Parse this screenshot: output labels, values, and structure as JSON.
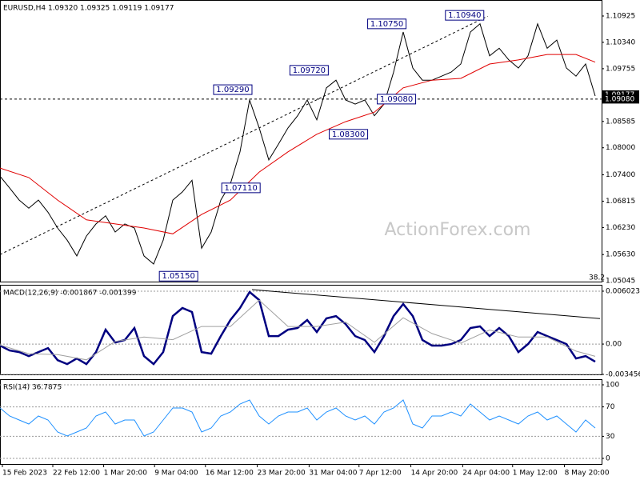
{
  "chart_data": [
    {
      "type": "line",
      "title": "EURUSD,H4  1.09320 1.09325 1.09119 1.09177",
      "watermark": "ActionForex.com",
      "note": "38.2",
      "xlim": [
        0,
        62.67
      ],
      "ylim": [
        1.0503,
        1.1128
      ],
      "grid": false,
      "yticks": [
        1.10925,
        {
          "value": 1.1034,
          "label": "1.10340"
        },
        1.09755,
        1.08585,
        {
          "value": 1.08,
          "label": "1.08000"
        },
        {
          "value": 1.074,
          "label": "1.07400"
        },
        1.06815,
        {
          "value": 1.0623,
          "label": "1.06230"
        },
        {
          "value": 1.0563,
          "label": "1.05630"
        },
        1.05045
      ],
      "series": [
        {
          "color": "#000000",
          "width": 1,
          "values": [
            1.0737,
            1.0711,
            1.0684,
            1.0666,
            1.0684,
            1.0657,
            1.0622,
            1.0595,
            1.056,
            1.0604,
            1.0631,
            1.0649,
            1.0613,
            1.0631,
            1.0622,
            1.056,
            1.0542,
            1.0595,
            1.0684,
            1.0702,
            1.0728,
            1.0577,
            1.0613,
            1.0684,
            1.072,
            1.0791,
            1.0906,
            1.0844,
            1.0773,
            1.0808,
            1.0844,
            1.0871,
            1.0906,
            1.0862,
            1.0933,
            1.095,
            1.0906,
            1.0897,
            1.0906,
            1.0871,
            1.0897,
            1.0968,
            1.1057,
            1.0977,
            1.095,
            1.095,
            1.0959,
            1.0968,
            1.0986,
            1.1057,
            1.1075,
            1.1004,
            1.1021,
            1.0995,
            1.0977,
            1.1004,
            1.1075,
            1.1021,
            1.1039,
            1.0977,
            1.0959,
            1.0986,
            1.0915
          ]
        },
        {
          "color": "#e00000",
          "width": 1,
          "x": [
            0,
            3,
            6,
            9,
            12,
            15,
            18,
            21,
            24,
            27,
            30,
            33,
            36,
            39,
            42,
            45,
            48,
            51,
            54,
            57,
            60,
            62
          ],
          "values": [
            1.0755,
            1.0734,
            1.0684,
            1.064,
            1.0631,
            1.0622,
            1.0609,
            1.0652,
            1.0684,
            1.0746,
            1.0791,
            1.083,
            1.0858,
            1.0879,
            1.0933,
            1.095,
            1.0954,
            1.0986,
            1.0995,
            1.1007,
            1.1007,
            1.099
          ]
        }
      ],
      "trendlines": [
        {
          "color": "#000000",
          "style": "dashed",
          "x": [
            0,
            50.8
          ],
          "values": [
            1.0563,
            1.1092
          ]
        },
        {
          "color": "#000000",
          "style": "dashed",
          "x": [
            0,
            62.67
          ],
          "values": [
            1.0908,
            1.0908
          ]
        }
      ],
      "annotations": [
        {
          "label": "1.10940",
          "value": 1.1094,
          "x": 50.4
        },
        {
          "label": "1.10750",
          "value": 1.1075,
          "x": 42.3
        },
        {
          "label": "1.09720",
          "value": 1.0972,
          "x": 34.2
        },
        {
          "label": "1.09290",
          "value": 1.0929,
          "x": 26.25
        },
        {
          "label": "1.09080",
          "value": 1.0908,
          "x": 43.3
        },
        {
          "label": "1.08300",
          "value": 1.083,
          "x": 38.3
        },
        {
          "label": "1.07110",
          "value": 1.0711,
          "x": 27.1
        },
        {
          "label": "1.05150",
          "value": 1.0515,
          "x": 20.6
        }
      ],
      "price_tags": [
        {
          "value": 1.09177,
          "label": "1.09177"
        },
        {
          "value": 1.0908,
          "label": "1.09080"
        }
      ]
    },
    {
      "type": "line",
      "title": "MACD(12,26,9) -0.001867 -0.001399",
      "xlim": [
        0,
        62.67
      ],
      "ylim": [
        -0.003456,
        0.00675
      ],
      "grid": true,
      "yticks": [
        0.006023,
        {
          "value": 0,
          "label": "0.00"
        },
        -0.003456
      ],
      "series": [
        {
          "color": "#000080",
          "width": 2.5,
          "values": [
            -0.00018,
            -0.00073,
            -0.00091,
            -0.00137,
            -0.00091,
            -0.00046,
            -0.00183,
            -0.00228,
            -0.00164,
            -0.00228,
            -0.00091,
            0.00164,
            0.00018,
            0.00046,
            0.00183,
            -0.00137,
            -0.00228,
            -0.00091,
            0.00319,
            0.00411,
            0.00365,
            -0.00091,
            -0.0011,
            0.00091,
            0.00274,
            0.00411,
            0.00593,
            0.00502,
            0.00091,
            0.00091,
            0.00164,
            0.00183,
            0.00274,
            0.00137,
            0.00292,
            0.00319,
            0.00228,
            0.00091,
            0.00046,
            -0.00091,
            0.00091,
            0.00319,
            0.00456,
            0.00319,
            0.00046,
            -0.00018,
            -0.00018,
            0,
            0.00046,
            0.00183,
            0.00201,
            0.00091,
            0.00183,
            0.00091,
            -0.00091,
            0,
            0.00137,
            0.00091,
            0.00046,
            0,
            -0.00164,
            -0.00137,
            -0.00201
          ]
        },
        {
          "color": "#a0a0a0",
          "width": 1,
          "x": [
            0,
            3,
            6,
            9,
            12,
            15,
            18,
            21,
            24,
            27,
            30,
            33,
            36,
            39,
            42,
            45,
            48,
            51,
            54,
            57,
            60,
            62
          ],
          "values": [
            -0.0001,
            -0.0011,
            -0.0012,
            -0.0018,
            0.0003,
            0.0008,
            0.0005,
            0.002,
            0.002,
            0.005,
            0.002,
            0.002,
            0.0025,
            0.0002,
            0.003,
            0.0012,
            0.0001,
            0.0016,
            0.0008,
            0.0008,
            -0.0008,
            -0.0014
          ]
        }
      ],
      "trendlines": [
        {
          "color": "#000000",
          "style": "solid",
          "x": [
            26.25,
            62.5
          ],
          "values": [
            0.0062,
            0.0029
          ]
        }
      ]
    },
    {
      "type": "line",
      "title": "RSI(14) 36.7875",
      "xlim": [
        0,
        62.67
      ],
      "ylim": [
        -7.6,
        107.6
      ],
      "grid": true,
      "yticks": [
        100,
        70,
        30,
        0
      ],
      "xticks": [
        {
          "value": 0.25,
          "label": "15 Feb 2023"
        },
        {
          "value": 5.5,
          "label": "22 Feb 12:00"
        },
        {
          "value": 10.8,
          "label": "1 Mar 20:00"
        },
        {
          "value": 16.1,
          "label": "9 Mar 04:00"
        },
        {
          "value": 21.4,
          "label": "16 Mar 12:00"
        },
        {
          "value": 26.8,
          "label": "23 Mar 20:00"
        },
        {
          "value": 32.2,
          "label": "31 Mar 04:00"
        },
        {
          "value": 37.4,
          "label": "7 Apr 12:00"
        },
        {
          "value": 42.8,
          "label": "14 Apr 20:00"
        },
        {
          "value": 48.2,
          "label": "24 Apr 04:00"
        },
        {
          "value": 53.4,
          "label": "1 May 12:00"
        },
        {
          "value": 58.8,
          "label": "8 May 20:00"
        }
      ],
      "series": [
        {
          "color": "#1e90ff",
          "width": 1,
          "values": [
            68.5,
            57.6,
            52.2,
            46.7,
            57.6,
            52.2,
            35.9,
            30.4,
            35.9,
            41.3,
            57.6,
            63.0,
            46.7,
            52.2,
            52.2,
            30.4,
            35.9,
            52.2,
            68.5,
            68.5,
            63.0,
            35.9,
            41.3,
            57.6,
            63.0,
            73.9,
            79.3,
            57.6,
            46.7,
            57.6,
            63.0,
            63.0,
            68.5,
            52.2,
            63.0,
            68.5,
            57.6,
            52.2,
            57.6,
            46.7,
            63.0,
            68.5,
            79.3,
            46.7,
            41.3,
            57.6,
            57.6,
            63.0,
            57.6,
            73.9,
            63.0,
            52.2,
            57.6,
            52.2,
            46.7,
            57.6,
            63.0,
            52.2,
            57.6,
            46.7,
            35.9,
            52.2,
            41.3
          ]
        }
      ]
    }
  ]
}
